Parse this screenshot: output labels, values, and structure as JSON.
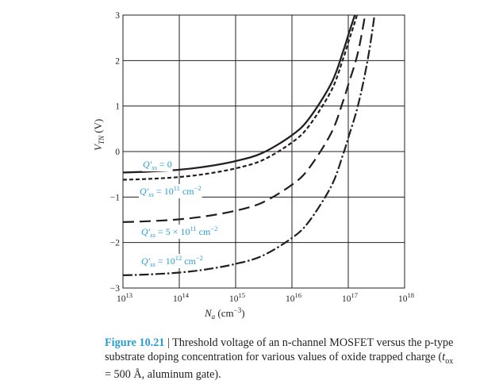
{
  "chart_data": {
    "type": "line",
    "x_scale": "log",
    "xlim": [
      10000000000000.0,
      1e+18
    ],
    "ylim": [
      -3,
      3
    ],
    "grid": true,
    "x_ticks": [
      {
        "value": 10000000000000.0,
        "base": "10",
        "exp": "13"
      },
      {
        "value": 100000000000000.0,
        "base": "10",
        "exp": "14"
      },
      {
        "value": 1000000000000000.0,
        "base": "10",
        "exp": "15"
      },
      {
        "value": 1e+16,
        "base": "10",
        "exp": "16"
      },
      {
        "value": 1e+17,
        "base": "10",
        "exp": "17"
      },
      {
        "value": 1e+18,
        "base": "10",
        "exp": "18"
      }
    ],
    "y_ticks": [
      {
        "value": 3,
        "label": "3"
      },
      {
        "value": 2,
        "label": "2"
      },
      {
        "value": 1,
        "label": "1"
      },
      {
        "value": 0,
        "label": "0"
      },
      {
        "value": -1,
        "label": "−1"
      },
      {
        "value": -2,
        "label": "−2"
      },
      {
        "value": -3,
        "label": "−3"
      }
    ],
    "xlabel": {
      "main": "N",
      "sub": "a",
      "unit": " (cm",
      "exp": "−3",
      "close": ")"
    },
    "ylabel": {
      "main": "V",
      "sub": "TN",
      "unit": " (V)"
    },
    "series": [
      {
        "style": "solid",
        "label": {
          "q": "Q′",
          "sub": "ss",
          "eq": " = 0",
          "exp": ""
        },
        "x": [
          10000000000000.0,
          30000000000000.0,
          100000000000000.0,
          300000000000000.0,
          1000000000000000.0,
          3000000000000000.0,
          1e+16,
          2e+16,
          5e+16,
          8e+16,
          1e+17,
          1.5e+17,
          2e+17
        ],
        "y": [
          -0.46,
          -0.44,
          -0.4,
          -0.33,
          -0.21,
          -0.03,
          0.36,
          0.72,
          1.5,
          2.18,
          2.56,
          3.25,
          3.95
        ]
      },
      {
        "style": "short-dash",
        "label": {
          "q": "Q′",
          "sub": "ss",
          "eq": " = 10",
          "exp": "11",
          "unit": " cm",
          "unit_exp": "−2"
        },
        "x": [
          10000000000000.0,
          30000000000000.0,
          100000000000000.0,
          300000000000000.0,
          1000000000000000.0,
          3000000000000000.0,
          1e+16,
          2e+16,
          5e+16,
          8e+16,
          1e+17,
          1.5e+17,
          2.1e+17
        ],
        "y": [
          -0.62,
          -0.6,
          -0.56,
          -0.49,
          -0.37,
          -0.19,
          0.2,
          0.56,
          1.34,
          2.02,
          2.4,
          3.1,
          3.95
        ]
      },
      {
        "style": "long-dash",
        "label": {
          "q": "Q′",
          "sub": "ss",
          "eq": " = 5 × 10",
          "exp": "11",
          "unit": " cm",
          "unit_exp": "−2"
        },
        "x": [
          10000000000000.0,
          30000000000000.0,
          100000000000000.0,
          300000000000000.0,
          1000000000000000.0,
          3000000000000000.0,
          1e+16,
          2e+16,
          5e+16,
          8e+16,
          1e+17,
          1.5e+17,
          2.2e+17,
          2.8e+17
        ],
        "y": [
          -1.55,
          -1.53,
          -1.49,
          -1.42,
          -1.3,
          -1.12,
          -0.73,
          -0.37,
          0.41,
          1.09,
          1.47,
          2.2,
          3.3,
          3.95
        ]
      },
      {
        "style": "dash-dot",
        "label": {
          "q": "Q′",
          "sub": "ss",
          "eq": " = 10",
          "exp": "12",
          "unit": " cm",
          "unit_exp": "−2"
        },
        "x": [
          10000000000000.0,
          30000000000000.0,
          100000000000000.0,
          300000000000000.0,
          1000000000000000.0,
          3000000000000000.0,
          1e+16,
          2e+16,
          5e+16,
          8e+16,
          1e+17,
          1.5e+17,
          2.2e+17,
          3e+17,
          3.6e+17
        ],
        "y": [
          -2.72,
          -2.7,
          -2.66,
          -2.59,
          -2.47,
          -2.29,
          -1.9,
          -1.54,
          -0.76,
          -0.08,
          0.3,
          1.03,
          2.0,
          3.1,
          3.95
        ]
      }
    ]
  },
  "caption": {
    "figure_label": "Figure 10.21",
    "separator": " | ",
    "text_1": "Threshold voltage of an n-channel MOSFET versus the p-type substrate doping concentration for various values of oxide trapped charge (",
    "tox_t": "t",
    "tox_sub": "ox",
    "text_2": " = 500 Å, aluminum gate)."
  }
}
